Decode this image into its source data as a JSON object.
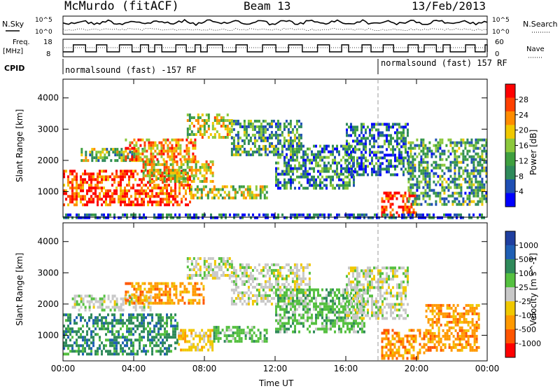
{
  "header": {
    "station": "McMurdo (fitACF)",
    "beam": "Beam 13",
    "date": "13/Feb/2013"
  },
  "top_labels": {
    "nsky": "N.Sky",
    "nsearch": "N.Search",
    "tick_hi_left": "10^5",
    "tick_lo_left": "10^0",
    "tick_hi_right": "10^5",
    "tick_lo_right": "10^0",
    "freq": "Freq.",
    "freq_unit": "[MHz]",
    "freq_hi": "18",
    "freq_lo": "8",
    "nave": "Nave",
    "nave_hi": "60",
    "nave_lo": "0",
    "cpid": "CPID",
    "cpid_seg1": "normalsound (fast) -157 RF",
    "cpid_seg2": "normalsound (fast) 157 RF"
  },
  "colors": {
    "power_scale": [
      "#0000ff",
      "#1f4fb4",
      "#2f8a5b",
      "#3fa03f",
      "#8cc83c",
      "#f0c800",
      "#ff8c00",
      "#ff4000",
      "#ff0000"
    ],
    "velocity_scale": [
      "#1f3fa0",
      "#1f5fb4",
      "#2f8a5b",
      "#55c040",
      "#c8c8c8",
      "#f0c800",
      "#ff9900",
      "#ff5500",
      "#ff0000"
    ]
  },
  "chart_data": [
    {
      "type": "heatmap",
      "panel": "power",
      "title": "McMurdo (fitACF) Beam 13 13/Feb/2013",
      "xlabel": "Time UT",
      "ylabel": "Slant Range [km]",
      "xlim": [
        "00:00",
        "00:00"
      ],
      "ylim": [
        180,
        4600
      ],
      "x_ticks": [
        "00:00",
        "04:00",
        "08:00",
        "12:00",
        "16:00",
        "20:00",
        "00:00"
      ],
      "y_ticks": [
        "1000",
        "2000",
        "3000",
        "4000"
      ],
      "colorbar": {
        "label": "Power [dB]",
        "ticks": [
          "4",
          "8",
          "12",
          "16",
          "20",
          "24",
          "28"
        ]
      },
      "bands": [
        {
          "t0": 0.0,
          "t1": 7.2,
          "r0": 600,
          "r1": 1700,
          "level": 0.85
        },
        {
          "t0": 7.2,
          "t1": 11.5,
          "r0": 800,
          "r1": 1200,
          "level": 0.5
        },
        {
          "t0": 1.0,
          "t1": 4.5,
          "r0": 2000,
          "r1": 2400,
          "level": 0.45
        },
        {
          "t0": 3.5,
          "t1": 7.5,
          "r0": 2000,
          "r1": 2700,
          "level": 0.7
        },
        {
          "t0": 4.5,
          "t1": 8.5,
          "r0": 1300,
          "r1": 2000,
          "level": 0.6
        },
        {
          "t0": 7.0,
          "t1": 9.5,
          "r0": 2700,
          "r1": 3500,
          "level": 0.55
        },
        {
          "t0": 9.5,
          "t1": 13.5,
          "r0": 2200,
          "r1": 3300,
          "level": 0.35
        },
        {
          "t0": 12.0,
          "t1": 16.5,
          "r0": 1100,
          "r1": 2500,
          "level": 0.3
        },
        {
          "t0": 16.0,
          "t1": 19.5,
          "r0": 1500,
          "r1": 3200,
          "level": 0.25
        },
        {
          "t0": 18.0,
          "t1": 20.0,
          "r0": 250,
          "r1": 1000,
          "level": 0.9
        },
        {
          "t0": 19.5,
          "t1": 24.0,
          "r0": 600,
          "r1": 2700,
          "level": 0.35
        },
        {
          "t0": 0.0,
          "t1": 24.0,
          "r0": 180,
          "r1": 300,
          "level": 0.15
        }
      ]
    },
    {
      "type": "heatmap",
      "panel": "velocity",
      "xlabel": "Time UT",
      "ylabel": "Slant Range [km]",
      "xlim": [
        "00:00",
        "00:00"
      ],
      "ylim": [
        180,
        4600
      ],
      "x_ticks": [
        "00:00",
        "04:00",
        "08:00",
        "12:00",
        "16:00",
        "20:00",
        "00:00"
      ],
      "y_ticks": [
        "1000",
        "2000",
        "3000",
        "4000"
      ],
      "colorbar": {
        "label": "Velocity [m s^-1]",
        "ticks": [
          "1000",
          "500",
          "100",
          "25",
          "-25",
          "-100",
          "-500",
          "-1000"
        ]
      },
      "bands": [
        {
          "t0": 0.0,
          "t1": 6.5,
          "r0": 400,
          "r1": 1700,
          "level": 2
        },
        {
          "t0": 6.5,
          "t1": 8.5,
          "r0": 550,
          "r1": 1200,
          "level": 5
        },
        {
          "t0": 8.5,
          "t1": 11.5,
          "r0": 800,
          "r1": 1300,
          "level": 3
        },
        {
          "t0": 0.5,
          "t1": 5.0,
          "r0": 1800,
          "r1": 2300,
          "level": 4
        },
        {
          "t0": 3.5,
          "t1": 8.0,
          "r0": 2000,
          "r1": 2700,
          "level": 6
        },
        {
          "t0": 7.0,
          "t1": 9.5,
          "r0": 2800,
          "r1": 3500,
          "level": 4
        },
        {
          "t0": 9.5,
          "t1": 14.0,
          "r0": 2000,
          "r1": 3300,
          "level": 4
        },
        {
          "t0": 12.0,
          "t1": 17.0,
          "r0": 1100,
          "r1": 2500,
          "level": 3
        },
        {
          "t0": 16.0,
          "t1": 19.5,
          "r0": 1500,
          "r1": 3200,
          "level": 4
        },
        {
          "t0": 18.0,
          "t1": 20.5,
          "r0": 250,
          "r1": 1200,
          "level": 6
        },
        {
          "t0": 20.5,
          "t1": 23.5,
          "r0": 500,
          "r1": 2000,
          "level": 6
        }
      ]
    }
  ]
}
